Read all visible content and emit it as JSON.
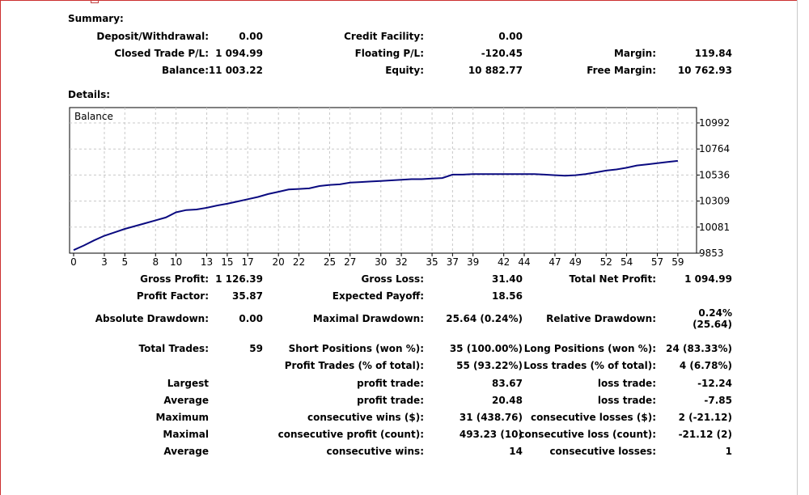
{
  "summary": {
    "heading": "Summary:",
    "deposit_label": "Deposit/Withdrawal:",
    "deposit_value": "0.00",
    "credit_label": "Credit Facility:",
    "credit_value": "0.00",
    "closed_label": "Closed Trade P/L:",
    "closed_value": "1 094.99",
    "floating_label": "Floating P/L:",
    "floating_value": "-120.45",
    "margin_label": "Margin:",
    "margin_value": "119.84",
    "balance_label": "Balance:",
    "balance_value": "11 003.22",
    "equity_label": "Equity:",
    "equity_value": "10 882.77",
    "free_margin_label": "Free Margin:",
    "free_margin_value": "10 762.93"
  },
  "details": {
    "heading": "Details:"
  },
  "chart_data": {
    "type": "line",
    "title": "Balance",
    "x_tick_labels": [
      "0",
      "3",
      "5",
      "8",
      "10",
      "13",
      "15",
      "17",
      "20",
      "22",
      "25",
      "27",
      "30",
      "32",
      "35",
      "37",
      "39",
      "42",
      "44",
      "47",
      "49",
      "52",
      "54",
      "57",
      "59"
    ],
    "y_tick_labels": [
      "10992",
      "10764",
      "10536",
      "10309",
      "10081",
      "9853"
    ],
    "ylim": [
      9853,
      10992
    ],
    "xlim": [
      0,
      59.8
    ],
    "grid": true,
    "line_color": "#0a0a80",
    "series": [
      {
        "x": [
          0,
          1,
          2,
          3,
          4,
          5,
          6,
          7,
          8,
          9,
          10,
          11,
          12,
          13,
          14,
          15,
          16,
          17,
          18,
          19,
          20,
          21,
          22,
          23,
          24,
          25,
          26,
          27,
          28,
          29,
          30,
          31,
          32,
          33,
          34,
          35,
          36,
          37,
          38,
          39,
          40,
          41,
          42,
          43,
          44,
          45,
          46,
          47,
          48,
          49,
          50,
          51,
          52,
          53,
          54,
          55,
          56,
          57,
          58,
          59
        ],
        "y": [
          9880,
          9920,
          9965,
          10005,
          10035,
          10065,
          10090,
          10115,
          10140,
          10165,
          10210,
          10230,
          10235,
          10250,
          10270,
          10285,
          10305,
          10325,
          10345,
          10370,
          10390,
          10410,
          10415,
          10420,
          10440,
          10450,
          10455,
          10470,
          10475,
          10480,
          10485,
          10490,
          10495,
          10500,
          10500,
          10505,
          10510,
          10540,
          10540,
          10545,
          10545,
          10545,
          10545,
          10545,
          10545,
          10545,
          10540,
          10535,
          10530,
          10535,
          10545,
          10560,
          10575,
          10585,
          10600,
          10620,
          10630,
          10640,
          10650,
          10660
        ]
      }
    ]
  },
  "stats": {
    "gross_profit_label": "Gross Profit:",
    "gross_profit_value": "1 126.39",
    "gross_loss_label": "Gross Loss:",
    "gross_loss_value": "31.40",
    "total_net_profit_label": "Total Net Profit:",
    "total_net_profit_value": "1 094.99",
    "profit_factor_label": "Profit Factor:",
    "profit_factor_value": "35.87",
    "expected_payoff_label": "Expected Payoff:",
    "expected_payoff_value": "18.56",
    "abs_drawdown_label": "Absolute Drawdown:",
    "abs_drawdown_value": "0.00",
    "max_drawdown_label": "Maximal Drawdown:",
    "max_drawdown_value": "25.64 (0.24%)",
    "rel_drawdown_label": "Relative Drawdown:",
    "rel_drawdown_value_1": "0.24%",
    "rel_drawdown_value_2": "(25.64)",
    "total_trades_label": "Total Trades:",
    "total_trades_value": "59",
    "short_label": "Short Positions (won %):",
    "short_value": "35 (100.00%)",
    "long_label": "Long Positions (won %):",
    "long_value": "24 (83.33%)",
    "profit_trades_label": "Profit Trades (% of total):",
    "profit_trades_value": "55 (93.22%)",
    "loss_trades_label": "Loss trades (% of total):",
    "loss_trades_value": "4 (6.78%)",
    "largest_label": "Largest",
    "largest_profit_label": "profit trade:",
    "largest_profit_value": "83.67",
    "largest_loss_label": "loss trade:",
    "largest_loss_value": "-12.24",
    "average_label": "Average",
    "average_profit_label": "profit trade:",
    "average_profit_value": "20.48",
    "average_loss_label": "loss trade:",
    "average_loss_value": "-7.85",
    "maximum_label": "Maximum",
    "max_wins_label": "consecutive wins ($):",
    "max_wins_value": "31 (438.76)",
    "max_losses_label": "consecutive losses ($):",
    "max_losses_value": "2 (-21.12)",
    "maximal_label": "Maximal",
    "maximal_profit_label": "consecutive profit (count):",
    "maximal_profit_value": "493.23 (10)",
    "maximal_loss_label": "consecutive loss (count):",
    "maximal_loss_value": "-21.12 (2)",
    "avg_consec_label": "Average",
    "avg_wins_label": "consecutive wins:",
    "avg_wins_value": "14",
    "avg_losses_label": "consecutive losses:",
    "avg_losses_value": "1"
  }
}
